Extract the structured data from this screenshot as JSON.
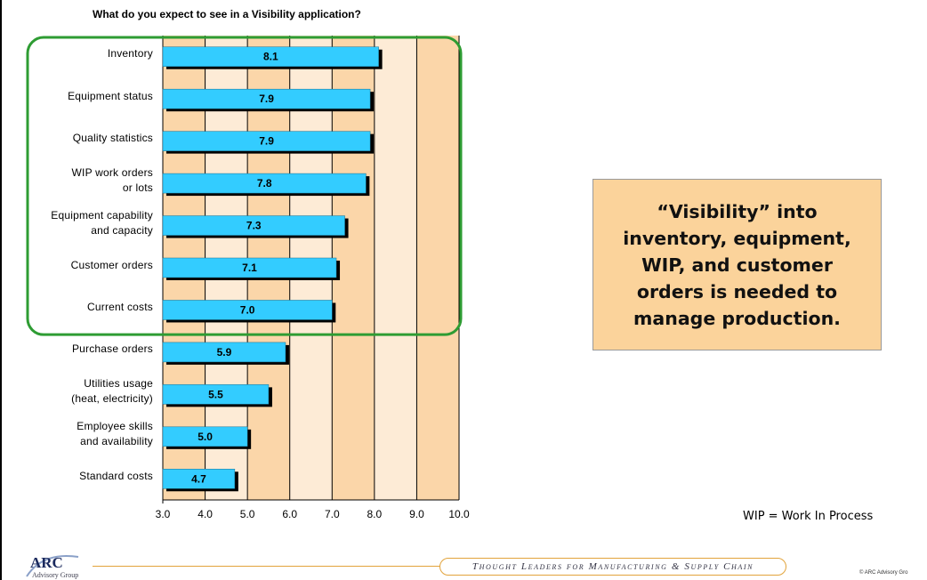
{
  "chart_data": {
    "type": "bar",
    "orientation": "horizontal",
    "title": "What do you expect to see in a Visibility application?",
    "categories": [
      "Inventory",
      "Equipment status",
      "Quality statistics",
      "WIP work orders\nor lots",
      "Equipment capability\nand capacity",
      "Customer orders",
      "Current costs",
      "Purchase orders",
      "Utilities usage\n(heat, electricity)",
      "Employee skills\nand availability",
      "Standard costs"
    ],
    "values": [
      8.1,
      7.9,
      7.9,
      7.8,
      7.3,
      7.1,
      7.0,
      5.9,
      5.5,
      5.0,
      4.7
    ],
    "value_labels": [
      "8.1",
      "7.9",
      "7.9",
      "7.8",
      "7.3",
      "7.1",
      "7.0",
      "5.9",
      "5.5",
      "5.0",
      "4.7"
    ],
    "xlim": [
      3.0,
      10.0
    ],
    "x_ticks": [
      "3.0",
      "4.0",
      "5.0",
      "6.0",
      "7.0",
      "8.0",
      "9.0",
      "10.0"
    ],
    "grid": "vertical",
    "highlight_group_count": 7,
    "colors": {
      "bar": "#33ccff",
      "bar_shadow": "#000000",
      "band_warm": "#fbd6a9",
      "band_light": "#fdebd6",
      "highlight_border": "#2e9c33"
    }
  },
  "callout": {
    "text": "“Visibility” into\ninventory,  equipment,\nWIP, and customer\norders is needed to\nmanage production."
  },
  "note": "WIP = Work In Process",
  "footer": {
    "logo": "ARC",
    "logo_sub": "Advisory Group",
    "tagline": "Thought Leaders for Manufacturing & Supply Chain",
    "copyright": "© ARC Advisory Gro"
  }
}
